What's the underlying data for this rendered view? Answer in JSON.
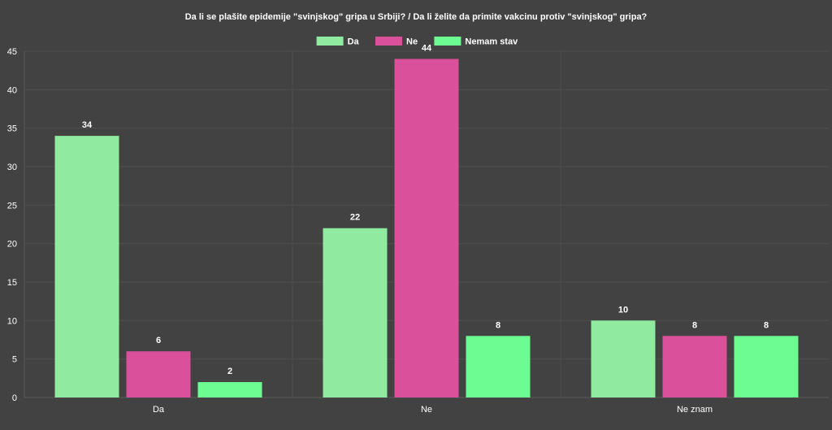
{
  "chart_data": {
    "type": "bar",
    "title": "Da li se plašite epidemije \"svinjskog\" gripa u Srbiji? / Da li želite da primite vakcinu protiv \"svinjskog\" gripa?",
    "categories": [
      "Da",
      "Ne",
      "Ne znam"
    ],
    "series": [
      {
        "name": "Da",
        "color": "#90ea9f",
        "values": [
          34,
          22,
          10
        ]
      },
      {
        "name": "Ne",
        "color": "#db509a",
        "values": [
          6,
          44,
          8
        ]
      },
      {
        "name": "Nemam stav",
        "color": "#6cfc92",
        "values": [
          2,
          8,
          8
        ]
      }
    ],
    "ylim": [
      0,
      45
    ],
    "yticks": [
      0,
      5,
      10,
      15,
      20,
      25,
      30,
      35,
      40,
      45
    ],
    "xlabel": "",
    "ylabel": "",
    "grid": true,
    "legend_position": "top-center",
    "data_labels": true,
    "background_color": "#424242"
  }
}
